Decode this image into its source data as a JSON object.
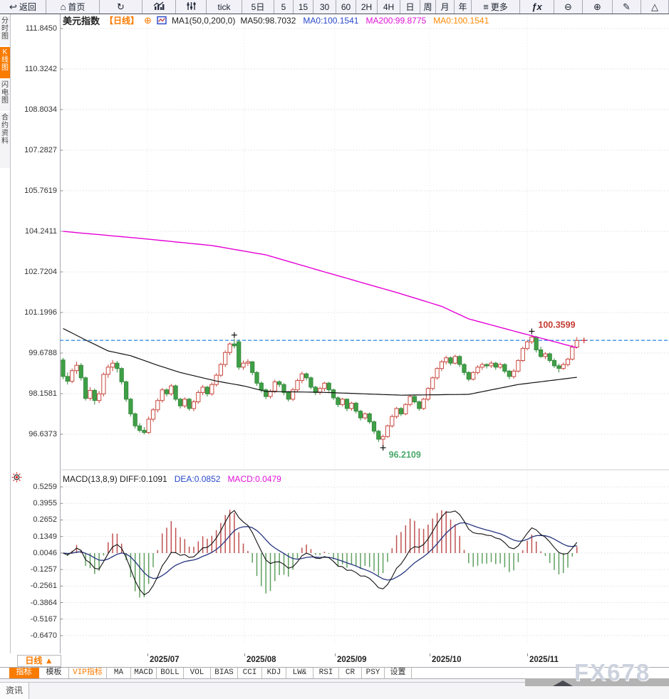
{
  "toolbar": {
    "items": [
      {
        "name": "back-button",
        "icon": "back",
        "label": "返回"
      },
      {
        "name": "home-button",
        "icon": "home",
        "label": "首页"
      },
      {
        "name": "refresh-button",
        "icon": "refresh",
        "label": ""
      },
      {
        "name": "line-chart-button",
        "icon": "bars-chart",
        "label": ""
      },
      {
        "name": "indicator-sliders-button",
        "icon": "sliders",
        "label": ""
      },
      {
        "name": "period-tick-button",
        "icon": "",
        "label": "tick"
      },
      {
        "name": "period-5d-button",
        "icon": "",
        "label": "5日"
      },
      {
        "name": "period-5-button",
        "icon": "",
        "label": "5"
      },
      {
        "name": "period-15-button",
        "icon": "",
        "label": "15"
      },
      {
        "name": "period-30-button",
        "icon": "",
        "label": "30"
      },
      {
        "name": "period-60-button",
        "icon": "",
        "label": "60"
      },
      {
        "name": "period-2h-button",
        "icon": "",
        "label": "2H"
      },
      {
        "name": "period-4h-button",
        "icon": "",
        "label": "4H"
      },
      {
        "name": "period-day-button",
        "icon": "",
        "label": "日"
      },
      {
        "name": "period-week-button",
        "icon": "",
        "label": "周"
      },
      {
        "name": "period-month-button",
        "icon": "",
        "label": "月"
      },
      {
        "name": "period-year-button",
        "icon": "",
        "label": "年"
      },
      {
        "name": "more-button",
        "icon": "menu",
        "label": "更多"
      },
      {
        "name": "formula-button",
        "icon": "fx",
        "label": ""
      },
      {
        "name": "zoom-out-button",
        "icon": "zoom-out",
        "label": ""
      },
      {
        "name": "zoom-in-button",
        "icon": "zoom-in",
        "label": ""
      },
      {
        "name": "draw-button",
        "icon": "pencil",
        "label": ""
      },
      {
        "name": "shape-button",
        "icon": "triangle",
        "label": ""
      }
    ]
  },
  "sidebar": {
    "tabs": [
      {
        "label": "分时图",
        "active": false
      },
      {
        "label": "K线图",
        "active": true
      },
      {
        "label": "闪电图",
        "active": false
      },
      {
        "label": "合约资料",
        "active": false
      }
    ],
    "news_tab": "资讯"
  },
  "title": {
    "symbol": "美元指数",
    "period": "【日线】",
    "ma_settings": "MA1(50,0,200,0)",
    "legend": [
      {
        "text": "MA50:98.7032",
        "color": "#222222"
      },
      {
        "text": "MA0:100.1541",
        "color": "#2948C8"
      },
      {
        "text": "MA200:99.8775",
        "color": "#E013D8"
      },
      {
        "text": "MA0:100.1541",
        "color": "#FF8800"
      }
    ]
  },
  "macd_panel": {
    "header": [
      {
        "text": "MACD(13,8,9) DIFF:0.1091",
        "color": "#222222"
      },
      {
        "text": "DEA:0.0852",
        "color": "#2948C8"
      },
      {
        "text": "MACD:0.0479",
        "color": "#E013D8"
      }
    ]
  },
  "x_axis": {
    "period_selector": "日线 ▲",
    "months": [
      "2025/07",
      "2025/08",
      "2025/09",
      "2025/10",
      "2025/11"
    ]
  },
  "indicator_bar": {
    "tabs": [
      {
        "label": "指标",
        "active": true,
        "vip": false
      },
      {
        "label": "模板",
        "active": false,
        "vip": false
      },
      {
        "label": "VIP指标",
        "active": false,
        "vip": true
      },
      {
        "label": "MA",
        "active": false,
        "vip": false
      },
      {
        "label": "MACD",
        "active": false,
        "vip": false
      },
      {
        "label": "BOLL",
        "active": false,
        "vip": false
      },
      {
        "label": "VOL",
        "active": false,
        "vip": false
      },
      {
        "label": "BIAS",
        "active": false,
        "vip": false
      },
      {
        "label": "CCI",
        "active": false,
        "vip": false
      },
      {
        "label": "KDJ",
        "active": false,
        "vip": false
      },
      {
        "label": "LW&",
        "active": false,
        "vip": false
      },
      {
        "label": "RSI",
        "active": false,
        "vip": false
      },
      {
        "label": "CR",
        "active": false,
        "vip": false
      },
      {
        "label": "PSY",
        "active": false,
        "vip": false
      },
      {
        "label": "设置",
        "active": false,
        "vip": false
      }
    ]
  },
  "watermark": "FX678",
  "colors": {
    "accent_orange": "#F97B00",
    "up_red": "#C9463D",
    "down_green": "#3FA047",
    "down_green_stroke": "#358A3C",
    "ma50": "#111111",
    "ma200": "#E500D6",
    "diff_line": "#111111",
    "dea_line": "#26357F",
    "hist_red": "#C05050",
    "hist_green": "#5FA05F",
    "dashed_blue": "#3A8EE6",
    "label_red": "#C43B33",
    "label_green": "#4BA86B",
    "grid": "#dedede"
  },
  "chart_data": {
    "type": "candlestick",
    "symbol": "美元指数",
    "price_axis_labels": [
      "111.8450",
      "110.3242",
      "108.8034",
      "107.2827",
      "105.7619",
      "104.2411",
      "102.7204",
      "101.1996",
      "99.6788",
      "98.1581",
      "96.6373"
    ],
    "macd_axis_labels": [
      "0.5259",
      "0.3955",
      "0.2652",
      "0.1349",
      "0.0046",
      "-0.1257",
      "-0.2561",
      "-0.3864",
      "-0.5167",
      "-0.6470"
    ],
    "current_price": 100.1541,
    "high_annotation": {
      "text": "100.3599",
      "value": 100.3599,
      "candle_index": 104
    },
    "low_annotation": {
      "text": "96.2109",
      "value": 96.2109,
      "candle_index": 71
    },
    "prev_high_annotation": {
      "value": 100.22,
      "candle_index": 38
    },
    "macd_params": [
      13,
      8,
      9
    ],
    "macd_last": {
      "diff": 0.1091,
      "dea": 0.0852,
      "macd": 0.0479
    },
    "ma50_points": [
      [
        0,
        100.6
      ],
      [
        5,
        100.17
      ],
      [
        10,
        99.76
      ],
      [
        15,
        99.58
      ],
      [
        21,
        99.22
      ],
      [
        26,
        98.95
      ],
      [
        34,
        98.63
      ],
      [
        40,
        98.45
      ],
      [
        45,
        98.24
      ],
      [
        57,
        98.21
      ],
      [
        75,
        98.1
      ],
      [
        90,
        98.13
      ],
      [
        101,
        98.5
      ],
      [
        114,
        98.77
      ]
    ],
    "ma200_points": [
      [
        0,
        104.24
      ],
      [
        17,
        103.98
      ],
      [
        33,
        103.71
      ],
      [
        45,
        103.36
      ],
      [
        58,
        102.72
      ],
      [
        74,
        101.95
      ],
      [
        84,
        101.43
      ],
      [
        90,
        100.96
      ],
      [
        101,
        100.46
      ],
      [
        108,
        100.15
      ],
      [
        114,
        99.88
      ]
    ],
    "candles": [
      [
        99.42,
        99.5,
        98.7,
        98.8
      ],
      [
        98.8,
        98.95,
        98.5,
        98.62
      ],
      [
        98.62,
        99.1,
        98.55,
        99.02
      ],
      [
        99.02,
        99.35,
        98.9,
        99.22
      ],
      [
        99.22,
        99.3,
        98.65,
        98.75
      ],
      [
        98.75,
        98.8,
        97.9,
        97.98
      ],
      [
        97.98,
        98.4,
        97.9,
        98.28
      ],
      [
        98.28,
        98.35,
        97.75,
        97.9
      ],
      [
        97.9,
        98.25,
        97.8,
        98.15
      ],
      [
        98.15,
        98.95,
        98.05,
        98.88
      ],
      [
        98.88,
        99.25,
        98.75,
        99.15
      ],
      [
        99.15,
        99.42,
        99.0,
        99.3
      ],
      [
        99.3,
        99.38,
        98.95,
        99.1
      ],
      [
        99.1,
        99.15,
        98.5,
        98.6
      ],
      [
        98.6,
        98.65,
        97.85,
        97.95
      ],
      [
        97.95,
        98.0,
        97.3,
        97.4
      ],
      [
        97.4,
        97.45,
        96.85,
        96.95
      ],
      [
        96.95,
        97.05,
        96.7,
        96.78
      ],
      [
        96.78,
        96.9,
        96.63,
        96.7
      ],
      [
        96.7,
        97.3,
        96.65,
        97.2
      ],
      [
        97.2,
        97.62,
        97.1,
        97.55
      ],
      [
        97.55,
        97.98,
        97.45,
        97.9
      ],
      [
        97.9,
        98.38,
        97.82,
        98.3
      ],
      [
        98.3,
        98.36,
        98.05,
        98.15
      ],
      [
        98.15,
        98.52,
        98.08,
        98.45
      ],
      [
        98.45,
        98.5,
        97.88,
        97.95
      ],
      [
        97.95,
        98.0,
        97.6,
        97.7
      ],
      [
        97.7,
        98.02,
        97.62,
        97.95
      ],
      [
        97.95,
        98.0,
        97.52,
        97.6
      ],
      [
        97.6,
        97.92,
        97.5,
        97.85
      ],
      [
        97.85,
        98.28,
        97.78,
        98.2
      ],
      [
        98.2,
        98.48,
        98.1,
        98.4
      ],
      [
        98.4,
        98.45,
        98.05,
        98.15
      ],
      [
        98.15,
        98.58,
        98.08,
        98.5
      ],
      [
        98.5,
        98.92,
        98.42,
        98.85
      ],
      [
        98.85,
        99.32,
        98.78,
        99.25
      ],
      [
        99.25,
        99.78,
        99.15,
        99.7
      ],
      [
        99.7,
        100.08,
        99.6,
        100.02
      ],
      [
        100.02,
        100.22,
        99.85,
        99.95
      ],
      [
        100.1,
        100.18,
        99.05,
        99.15
      ],
      [
        99.15,
        99.4,
        99.05,
        99.3
      ],
      [
        99.3,
        99.45,
        99.2,
        99.35
      ],
      [
        99.35,
        99.38,
        98.85,
        98.95
      ],
      [
        98.95,
        99.0,
        98.45,
        98.55
      ],
      [
        98.55,
        98.62,
        98.2,
        98.3
      ],
      [
        98.3,
        98.35,
        97.95,
        98.05
      ],
      [
        98.05,
        98.32,
        97.98,
        98.25
      ],
      [
        98.25,
        98.68,
        98.18,
        98.6
      ],
      [
        98.6,
        98.66,
        98.4,
        98.5
      ],
      [
        98.5,
        98.55,
        98.1,
        98.2
      ],
      [
        98.2,
        98.26,
        97.86,
        97.95
      ],
      [
        97.95,
        98.38,
        97.88,
        98.3
      ],
      [
        98.3,
        98.72,
        98.22,
        98.65
      ],
      [
        98.65,
        98.98,
        98.55,
        98.9
      ],
      [
        98.9,
        98.95,
        98.65,
        98.75
      ],
      [
        98.75,
        98.8,
        98.32,
        98.4
      ],
      [
        98.4,
        98.45,
        98.1,
        98.2
      ],
      [
        98.2,
        98.42,
        98.12,
        98.35
      ],
      [
        98.35,
        98.6,
        98.25,
        98.55
      ],
      [
        98.55,
        98.6,
        98.22,
        98.3
      ],
      [
        98.3,
        98.35,
        97.92,
        98.0
      ],
      [
        98.0,
        98.05,
        97.65,
        97.75
      ],
      [
        97.75,
        98.0,
        97.68,
        97.95
      ],
      [
        97.95,
        97.98,
        97.5,
        97.6
      ],
      [
        97.6,
        97.85,
        97.52,
        97.8
      ],
      [
        97.8,
        97.85,
        97.42,
        97.5
      ],
      [
        97.5,
        97.55,
        97.15,
        97.25
      ],
      [
        97.25,
        97.45,
        97.18,
        97.4
      ],
      [
        97.4,
        97.45,
        97.02,
        97.1
      ],
      [
        97.1,
        97.15,
        96.65,
        96.75
      ],
      [
        96.75,
        96.8,
        96.35,
        96.45
      ],
      [
        96.45,
        96.62,
        96.21,
        96.55
      ],
      [
        96.55,
        97.0,
        96.5,
        96.95
      ],
      [
        96.95,
        97.38,
        96.88,
        97.3
      ],
      [
        97.3,
        97.66,
        97.22,
        97.6
      ],
      [
        97.6,
        97.65,
        97.32,
        97.4
      ],
      [
        97.4,
        97.8,
        97.35,
        97.75
      ],
      [
        97.75,
        98.1,
        97.68,
        98.05
      ],
      [
        98.05,
        98.1,
        97.78,
        97.85
      ],
      [
        97.85,
        97.9,
        97.52,
        97.6
      ],
      [
        97.6,
        98.0,
        97.55,
        97.95
      ],
      [
        97.95,
        98.4,
        97.88,
        98.35
      ],
      [
        98.35,
        98.8,
        98.28,
        98.75
      ],
      [
        98.75,
        99.15,
        98.68,
        99.1
      ],
      [
        99.1,
        99.42,
        99.0,
        99.35
      ],
      [
        99.35,
        99.58,
        99.25,
        99.5
      ],
      [
        99.5,
        99.55,
        99.22,
        99.3
      ],
      [
        99.3,
        99.62,
        99.25,
        99.55
      ],
      [
        99.55,
        99.6,
        99.15,
        99.25
      ],
      [
        99.25,
        99.3,
        98.85,
        98.95
      ],
      [
        98.95,
        99.0,
        98.62,
        98.7
      ],
      [
        98.7,
        99.0,
        98.65,
        98.95
      ],
      [
        98.95,
        99.22,
        98.88,
        99.15
      ],
      [
        99.15,
        99.32,
        99.05,
        99.25
      ],
      [
        99.25,
        99.3,
        99.1,
        99.2
      ],
      [
        99.2,
        99.38,
        99.12,
        99.3
      ],
      [
        99.3,
        99.35,
        99.05,
        99.15
      ],
      [
        99.15,
        99.32,
        99.08,
        99.25
      ],
      [
        99.25,
        99.3,
        98.92,
        99.0
      ],
      [
        99.0,
        99.05,
        98.7,
        98.8
      ],
      [
        98.8,
        99.08,
        98.72,
        99.0
      ],
      [
        99.0,
        99.45,
        98.95,
        99.4
      ],
      [
        99.4,
        99.92,
        99.35,
        99.85
      ],
      [
        99.85,
        100.16,
        99.78,
        100.1
      ],
      [
        100.1,
        100.36,
        100.02,
        100.28
      ],
      [
        100.28,
        100.32,
        99.7,
        99.8
      ],
      [
        99.8,
        99.92,
        99.5,
        99.55
      ],
      [
        99.55,
        99.72,
        99.45,
        99.65
      ],
      [
        99.65,
        99.7,
        99.32,
        99.4
      ],
      [
        99.4,
        99.48,
        99.12,
        99.2
      ],
      [
        99.2,
        99.28,
        98.95,
        99.1
      ],
      [
        99.1,
        99.32,
        99.05,
        99.25
      ],
      [
        99.25,
        99.5,
        99.18,
        99.45
      ],
      [
        99.45,
        99.98,
        99.4,
        99.9
      ],
      [
        99.9,
        100.28,
        99.85,
        100.15
      ]
    ]
  }
}
